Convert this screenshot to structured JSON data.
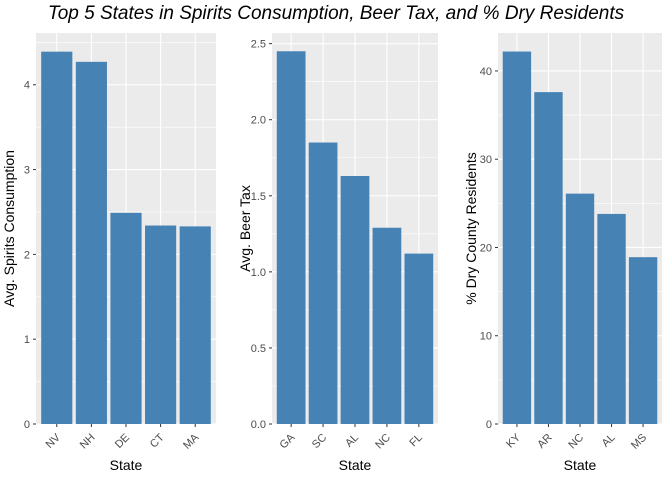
{
  "title": "Top 5 States in Spirits Consumption, Beer Tax, and % Dry Residents",
  "chart_data": [
    {
      "type": "bar",
      "categories": [
        "NV",
        "NH",
        "DE",
        "CT",
        "MA"
      ],
      "values": [
        4.39,
        4.27,
        2.49,
        2.34,
        2.33
      ],
      "xlabel": "State",
      "ylabel": "Avg. Spirits Consumption",
      "ylim": [
        0,
        4.61
      ],
      "yticks": [
        0,
        1,
        2,
        3,
        4
      ],
      "ytick_labels": [
        "0",
        "1",
        "2",
        "3",
        "4"
      ],
      "grid": true,
      "bar_color": "#4682b4"
    },
    {
      "type": "bar",
      "categories": [
        "GA",
        "SC",
        "AL",
        "NC",
        "FL"
      ],
      "values": [
        2.45,
        1.85,
        1.63,
        1.29,
        1.12
      ],
      "xlabel": "State",
      "ylabel": "Avg. Beer Tax",
      "ylim": [
        0,
        2.57
      ],
      "yticks": [
        0,
        0.5,
        1,
        1.5,
        2,
        2.5
      ],
      "ytick_labels": [
        "0.0",
        "0.5",
        "1.0",
        "1.5",
        "2.0",
        "2.5"
      ],
      "grid": true,
      "bar_color": "#4682b4"
    },
    {
      "type": "bar",
      "categories": [
        "KY",
        "AR",
        "NC",
        "AL",
        "MS"
      ],
      "values": [
        42.2,
        37.6,
        26.1,
        23.8,
        18.9
      ],
      "xlabel": "State",
      "ylabel": "% Dry County Residents",
      "ylim": [
        0,
        44.3
      ],
      "yticks": [
        0,
        10,
        20,
        30,
        40
      ],
      "ytick_labels": [
        "0",
        "10",
        "20",
        "30",
        "40"
      ],
      "grid": true,
      "bar_color": "#4682b4"
    }
  ]
}
